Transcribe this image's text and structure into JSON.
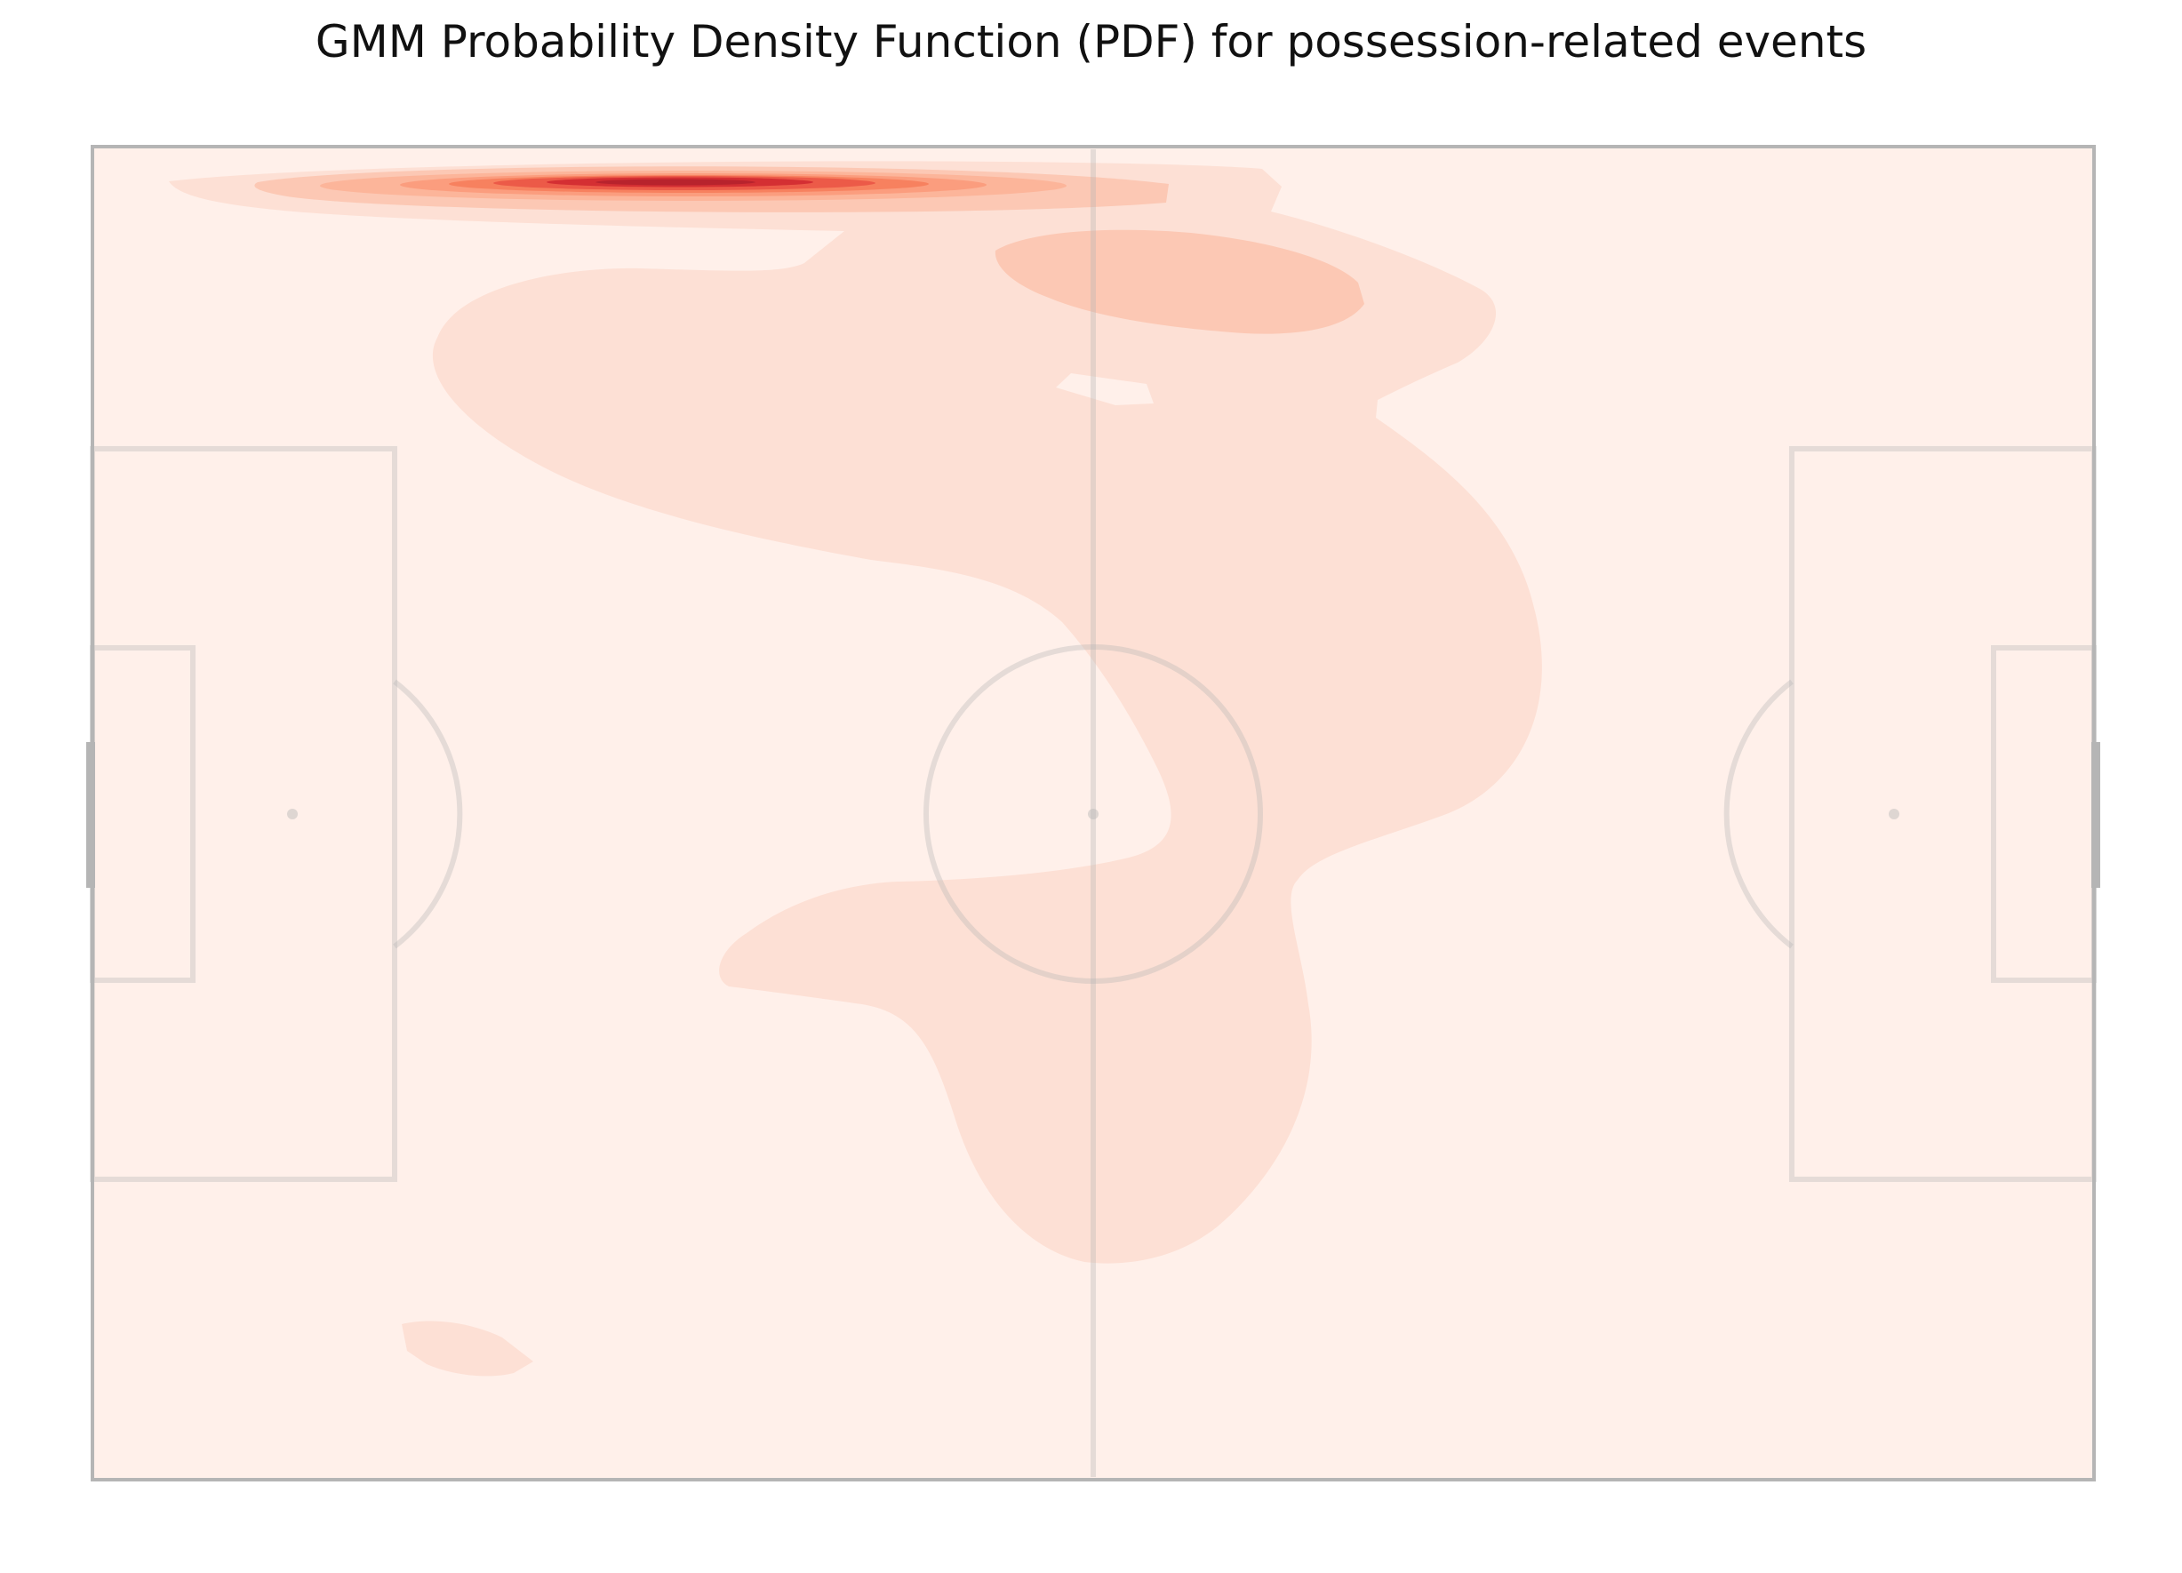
{
  "title": "GMM Probability Density Function (PDF) for possession-related events",
  "chart_data": {
    "type": "heatmap",
    "title": "GMM Probability Density Function (PDF) for possession-related events",
    "background": "pitch",
    "colormap": "Reds",
    "colors": {
      "pitch_fill": "#fff0ea",
      "pitch_lines": "#b5b5b5",
      "level_1": "#fde0d5",
      "level_2": "#fcc8b4",
      "level_3": "#fcb59a",
      "level_4": "#fb9d7e",
      "level_5": "#f7815f",
      "level_6": "#ec5a48",
      "level_7": "#d42f33",
      "level_8": "#b8232d"
    },
    "pitch": {
      "length": 105,
      "width": 68
    },
    "components": [
      {
        "x": 31,
        "y": 64.5,
        "weight": "highest"
      },
      {
        "x": 58,
        "y": 57,
        "weight": "medium"
      },
      {
        "x": 45,
        "y": 38,
        "weight": "low"
      },
      {
        "x": 52,
        "y": 22,
        "weight": "low"
      },
      {
        "x": 19,
        "y": 7,
        "weight": "low"
      }
    ]
  }
}
